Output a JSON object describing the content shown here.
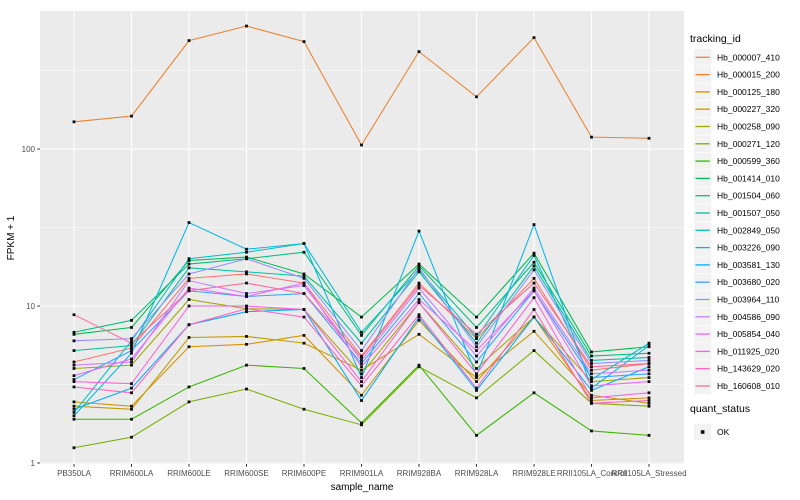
{
  "chart_data": {
    "type": "line",
    "title": "",
    "xlabel": "sample_name",
    "ylabel": "FPKM + 1",
    "yscale": "log10",
    "yticks": [
      1,
      10,
      100
    ],
    "yticks_minor": [
      3.162,
      31.62,
      316.2
    ],
    "ylim": [
      0.98,
      760
    ],
    "grid": true,
    "legend_position": "right",
    "marker": "black-square",
    "categories": [
      "PB350LA",
      "RRIM600LA",
      "RRIM600LE",
      "RRIM600SE",
      "RRIM600PE",
      "RRIM901LA",
      "RRIM928BA",
      "RRIM928LA",
      "RRIM928LE",
      "RRII105LA_Control",
      "RRII105LA_Stressed"
    ],
    "series": [
      {
        "name": "Hb_000007_410",
        "color": "#F8766D",
        "values": [
          4.4,
          5.4,
          15,
          16,
          14,
          4.8,
          14,
          6.2,
          15,
          3.9,
          4.3
        ]
      },
      {
        "name": "Hb_000015_200",
        "color": "#EA8331",
        "values": [
          149,
          162,
          490,
          607,
          483,
          106,
          417,
          215,
          512,
          119,
          117
        ]
      },
      {
        "name": "Hb_000125_180",
        "color": "#D89000",
        "values": [
          2.45,
          2.3,
          5.5,
          5.7,
          6.5,
          2.7,
          8.1,
          3.3,
          8.5,
          2.5,
          2.6
        ]
      },
      {
        "name": "Hb_000227_320",
        "color": "#C09B00",
        "values": [
          2.3,
          2.2,
          6.3,
          6.4,
          5.8,
          3.9,
          6.6,
          3.5,
          6.9,
          2.7,
          2.4
        ]
      },
      {
        "name": "Hb_000258_090",
        "color": "#A3A500",
        "values": [
          4.0,
          4.2,
          11,
          9.6,
          9.5,
          3.7,
          10.5,
          4.0,
          8.5,
          3.3,
          3.5
        ]
      },
      {
        "name": "Hb_000271_120",
        "color": "#7CAE00",
        "values": [
          1.25,
          1.46,
          2.45,
          2.96,
          2.2,
          1.75,
          4.1,
          2.6,
          5.2,
          2.4,
          2.3
        ]
      },
      {
        "name": "Hb_000599_360",
        "color": "#39B600",
        "values": [
          1.9,
          1.9,
          3.05,
          4.2,
          4.0,
          1.8,
          4.2,
          1.5,
          2.8,
          1.6,
          1.5
        ]
      },
      {
        "name": "Hb_001414_010",
        "color": "#00BB4E",
        "values": [
          6.6,
          7.3,
          19.5,
          20.5,
          16,
          8.5,
          18.5,
          8.5,
          21.7,
          5.1,
          5.5
        ]
      },
      {
        "name": "Hb_001504_060",
        "color": "#00BF7D",
        "values": [
          6.8,
          8.1,
          18.5,
          20,
          22,
          6.5,
          18,
          7.3,
          19,
          4.8,
          5.0
        ]
      },
      {
        "name": "Hb_001507_050",
        "color": "#00C1A3",
        "values": [
          5.2,
          5.6,
          17.5,
          16.5,
          15.5,
          5.8,
          16.5,
          5.8,
          18,
          4.5,
          4.7
        ]
      },
      {
        "name": "Hb_002849_050",
        "color": "#00BFC4",
        "values": [
          2.1,
          6.0,
          20,
          22,
          25,
          6.8,
          17,
          6.3,
          21,
          3.4,
          5.8
        ]
      },
      {
        "name": "Hb_003226_090",
        "color": "#00B8E5",
        "values": [
          2.0,
          5.0,
          34,
          23,
          25,
          3.5,
          30,
          3.6,
          33,
          3.0,
          5.6
        ]
      },
      {
        "name": "Hb_003581_130",
        "color": "#00ACFC",
        "values": [
          2.2,
          3.0,
          7.6,
          9.2,
          9.5,
          2.5,
          8.5,
          2.9,
          8.5,
          2.9,
          4.1
        ]
      },
      {
        "name": "Hb_003680_020",
        "color": "#35A2FF",
        "values": [
          3.4,
          5.2,
          12.5,
          11.5,
          12,
          4.3,
          12,
          4.4,
          12.5,
          3.5,
          3.7
        ]
      },
      {
        "name": "Hb_003964_110",
        "color": "#9590FF",
        "values": [
          6.0,
          6.2,
          16,
          20,
          15,
          5.2,
          17.5,
          5.5,
          17,
          4.3,
          4.5
        ]
      },
      {
        "name": "Hb_004586_090",
        "color": "#C77CFF",
        "values": [
          4.2,
          4.4,
          14.5,
          12,
          13.5,
          4.5,
          13,
          4.8,
          13,
          3.7,
          3.9
        ]
      },
      {
        "name": "Hb_005854_040",
        "color": "#E76BF3",
        "values": [
          3.6,
          4.6,
          13,
          11.5,
          14,
          4.1,
          11,
          5.2,
          12.5,
          3.1,
          3.3
        ]
      },
      {
        "name": "Hb_011925_020",
        "color": "#FA62DB",
        "values": [
          3.3,
          3.2,
          10,
          10,
          9.5,
          3.3,
          10.5,
          3.7,
          11.3,
          2.6,
          2.8
        ]
      },
      {
        "name": "Hb_143629_020",
        "color": "#FF61C3",
        "values": [
          3.05,
          2.8,
          7.6,
          9.6,
          8.5,
          3.1,
          8.8,
          3.0,
          9.5,
          2.4,
          2.5
        ]
      },
      {
        "name": "Hb_160608_010",
        "color": "#FF6A98",
        "values": [
          8.8,
          5.8,
          12.5,
          14,
          12,
          4.7,
          13.5,
          6.6,
          14,
          4.1,
          4.3
        ]
      }
    ]
  },
  "legend": {
    "tracking_title": "tracking_id",
    "quant_title": "quant_status",
    "quant_items": [
      {
        "label": "OK"
      }
    ]
  },
  "colors": {
    "panel_bg": "#EBEBEB",
    "grid": "#FFFFFF",
    "key_bg": "#F2F2F2",
    "tick_text": "#4D4D4D",
    "tick_mark": "#333333",
    "marker": "#0A0A0A"
  }
}
